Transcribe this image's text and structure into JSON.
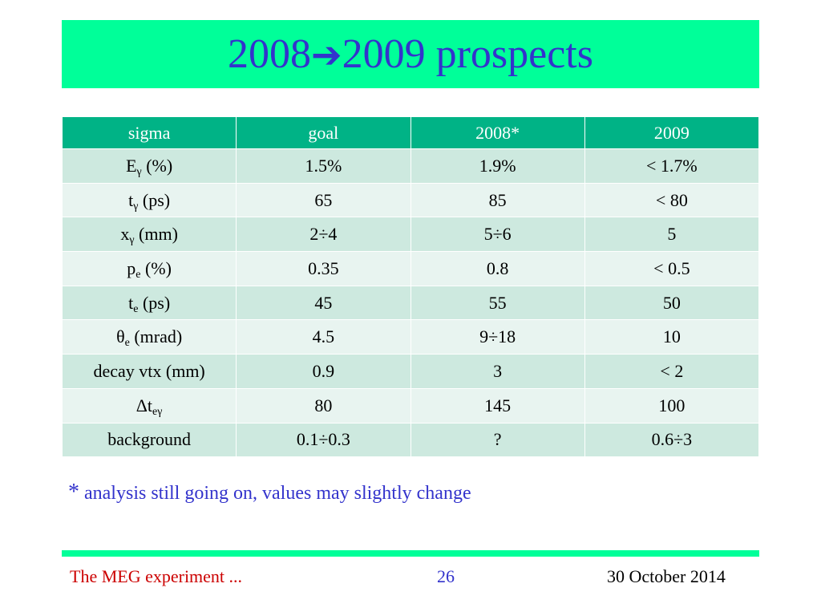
{
  "title": {
    "left": "2008",
    "arrow": "➔",
    "right": "2009 prospects"
  },
  "table": {
    "headers": [
      "sigma",
      "goal",
      "2008*",
      "2009"
    ],
    "rows": [
      {
        "label": "E",
        "sub": "γ",
        "unit": " (%)",
        "values": [
          "1.5%",
          "1.9%",
          "< 1.7%"
        ]
      },
      {
        "label": "t",
        "sub": "γ",
        "unit": " (ps)",
        "values": [
          "65",
          "85",
          "< 80"
        ]
      },
      {
        "label": "x",
        "sub": "γ",
        "unit": " (mm)",
        "values": [
          "2÷4",
          "5÷6",
          "5"
        ]
      },
      {
        "label": "p",
        "sub": "e",
        "unit": " (%)",
        "values": [
          "0.35",
          "0.8",
          "< 0.5"
        ]
      },
      {
        "label": "t",
        "sub": "e",
        "unit": " (ps)",
        "values": [
          "45",
          "55",
          "50"
        ]
      },
      {
        "label": "θ",
        "sub": "e",
        "unit": " (mrad)",
        "values": [
          "4.5",
          "9÷18",
          "10"
        ]
      },
      {
        "label": "decay vtx (mm)",
        "sub": "",
        "unit": "",
        "values": [
          "0.9",
          "3",
          "< 2"
        ]
      },
      {
        "label": "Δt",
        "sub": "eγ",
        "unit": "",
        "values": [
          "80",
          "145",
          "100"
        ]
      },
      {
        "label": "background",
        "sub": "",
        "unit": "",
        "values": [
          "0.1÷0.3",
          "?",
          "0.6÷3"
        ]
      }
    ]
  },
  "note": {
    "star": "*",
    "text": "analysis still going on, values may slightly change"
  },
  "footer": {
    "left": "The MEG experiment ...",
    "page": "26",
    "date": "30 October 2014"
  },
  "colors": {
    "title_bar": "#00ff99",
    "title_text": "#3333cc",
    "header_bg": "#00b386",
    "row_dark": "#cde9df",
    "row_light": "#e8f4f0",
    "footer_red": "#cc0000"
  }
}
